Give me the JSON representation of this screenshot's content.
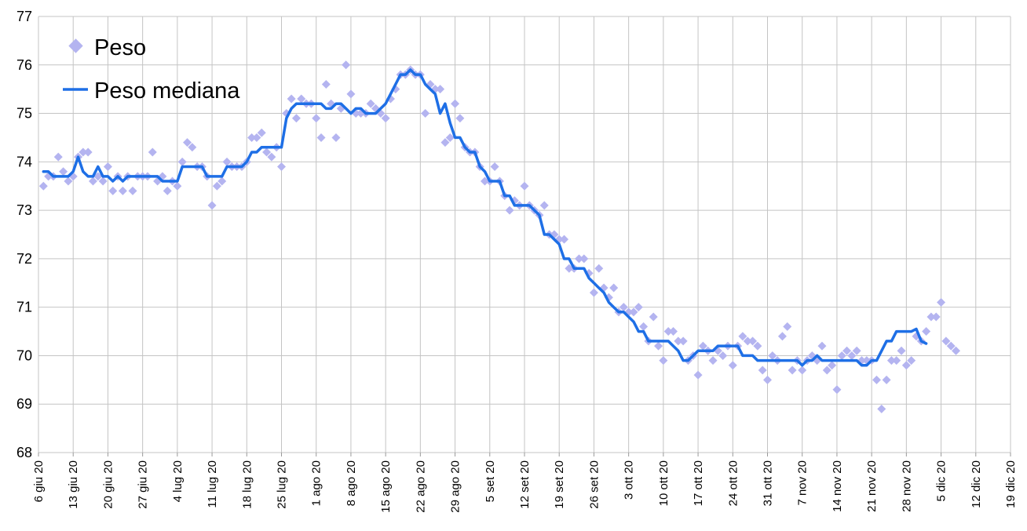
{
  "chart_data": {
    "type": "scatter",
    "title": "",
    "xlabel": "",
    "ylabel": "",
    "ylim": [
      68,
      77
    ],
    "yticks": [
      68,
      69,
      70,
      71,
      72,
      73,
      74,
      75,
      76,
      77
    ],
    "xlim": [
      "2020-06-06",
      "2020-12-19"
    ],
    "x_tick_labels": [
      "6 giu 20",
      "13 giu 20",
      "20 giu 20",
      "27 giu 20",
      "4 lug 20",
      "11 lug 20",
      "18 lug 20",
      "25 lug 20",
      "1 ago 20",
      "8 ago 20",
      "15 ago 20",
      "22 ago 20",
      "29 ago 20",
      "5 set 20",
      "12 set 20",
      "19 set 20",
      "26 set 20",
      "3 ott 20",
      "10 ott 20",
      "17 ott 20",
      "24 ott 20",
      "31 ott 20",
      "7 nov 20",
      "14 nov 20",
      "21 nov 20",
      "28 nov 20",
      "5 dic 20",
      "12 dic 20",
      "19 dic 20"
    ],
    "grid": true,
    "legend_position": "top-left",
    "start_date": "2020-06-07",
    "series": [
      {
        "name": "Peso",
        "kind": "scatter",
        "color": "#b4b4f0",
        "values": [
          73.5,
          73.7,
          73.7,
          74.1,
          73.8,
          73.6,
          73.7,
          74.1,
          74.2,
          74.2,
          73.6,
          73.7,
          73.6,
          73.9,
          73.4,
          73.7,
          73.4,
          73.7,
          73.4,
          73.7,
          73.7,
          73.7,
          74.2,
          73.6,
          73.7,
          73.4,
          73.6,
          73.5,
          74.0,
          74.4,
          74.3,
          73.9,
          73.9,
          73.7,
          73.1,
          73.5,
          73.6,
          74.0,
          73.9,
          73.9,
          73.9,
          74.0,
          74.5,
          74.5,
          74.6,
          74.2,
          74.1,
          74.3,
          73.9,
          75.0,
          75.3,
          74.9,
          75.3,
          75.2,
          75.2,
          74.9,
          74.5,
          75.6,
          75.2,
          74.5,
          75.1,
          76.0,
          75.4,
          75.0,
          75.0,
          75.0,
          75.2,
          75.1,
          75.0,
          74.9,
          75.3,
          75.5,
          75.8,
          75.8,
          75.9,
          75.8,
          75.8,
          75.0,
          75.6,
          75.5,
          75.5,
          74.4,
          74.5,
          75.2,
          74.9,
          74.3,
          74.2,
          74.2,
          73.9,
          73.6,
          73.6,
          73.9,
          73.6,
          73.3,
          73.0,
          73.2,
          73.1,
          73.5,
          73.1,
          73.0,
          72.9,
          73.1,
          72.5,
          72.5,
          72.4,
          72.4,
          71.8,
          71.8,
          72.0,
          72.0,
          71.7,
          71.3,
          71.8,
          71.4,
          71.2,
          71.4,
          70.9,
          71.0,
          70.9,
          70.9,
          71.0,
          70.6,
          70.3,
          70.8,
          70.2,
          69.9,
          70.5,
          70.5,
          70.3,
          70.3,
          69.9,
          70.0,
          69.6,
          70.2,
          70.1,
          69.9,
          70.1,
          70.0,
          70.2,
          69.8,
          70.2,
          70.4,
          70.3,
          70.3,
          70.2,
          69.7,
          69.5,
          70.0,
          69.9,
          70.4,
          70.6,
          69.7,
          69.9,
          69.7,
          69.9,
          70.0,
          69.9,
          70.2,
          69.7,
          69.8,
          69.3,
          70.0,
          70.1,
          70.0,
          70.1,
          69.9,
          69.9,
          69.9,
          69.5,
          68.9,
          69.5,
          69.9,
          69.9,
          70.1,
          69.8,
          69.9,
          70.4,
          70.3,
          70.5,
          70.8,
          70.8,
          71.1,
          70.3,
          70.2,
          70.1
        ]
      },
      {
        "name": "Peso mediana",
        "kind": "line",
        "color": "#1e6fe6",
        "values": [
          73.8,
          73.8,
          73.7,
          73.7,
          73.7,
          73.7,
          73.8,
          74.1,
          73.8,
          73.7,
          73.7,
          73.9,
          73.7,
          73.7,
          73.6,
          73.7,
          73.6,
          73.7,
          73.7,
          73.7,
          73.7,
          73.7,
          73.7,
          73.7,
          73.6,
          73.6,
          73.6,
          73.6,
          73.9,
          73.9,
          73.9,
          73.9,
          73.9,
          73.7,
          73.7,
          73.7,
          73.7,
          73.9,
          73.9,
          73.9,
          73.9,
          74.0,
          74.2,
          74.2,
          74.3,
          74.3,
          74.3,
          74.3,
          74.3,
          74.9,
          75.1,
          75.2,
          75.2,
          75.2,
          75.2,
          75.2,
          75.2,
          75.1,
          75.1,
          75.2,
          75.2,
          75.1,
          75.0,
          75.1,
          75.1,
          75.0,
          75.0,
          75.0,
          75.1,
          75.2,
          75.4,
          75.6,
          75.8,
          75.8,
          75.9,
          75.8,
          75.8,
          75.6,
          75.5,
          75.4,
          75.0,
          75.2,
          74.8,
          74.5,
          74.5,
          74.3,
          74.2,
          74.2,
          73.9,
          73.8,
          73.6,
          73.6,
          73.6,
          73.3,
          73.3,
          73.1,
          73.1,
          73.1,
          73.1,
          73.0,
          72.9,
          72.5,
          72.5,
          72.4,
          72.3,
          72.0,
          72.0,
          71.8,
          71.8,
          71.8,
          71.6,
          71.5,
          71.4,
          71.3,
          71.1,
          71.0,
          70.9,
          70.9,
          70.8,
          70.7,
          70.5,
          70.5,
          70.3,
          70.3,
          70.3,
          70.3,
          70.3,
          70.2,
          70.1,
          69.9,
          69.9,
          70.0,
          70.1,
          70.1,
          70.1,
          70.1,
          70.2,
          70.2,
          70.2,
          70.2,
          70.2,
          70.0,
          70.0,
          70.0,
          69.9,
          69.9,
          69.9,
          69.9,
          69.9,
          69.9,
          69.9,
          69.9,
          69.9,
          69.8,
          69.9,
          69.9,
          70.0,
          69.9,
          69.9,
          69.9,
          69.9,
          69.9,
          69.9,
          69.9,
          69.9,
          69.8,
          69.8,
          69.9,
          69.9,
          70.1,
          70.3,
          70.3,
          70.5,
          70.5,
          70.5,
          70.5,
          70.55,
          70.3,
          70.25
        ]
      }
    ]
  }
}
